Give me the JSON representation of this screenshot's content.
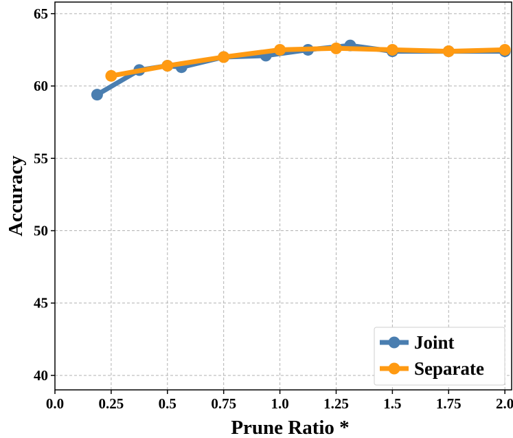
{
  "chart_data": {
    "type": "line",
    "xlabel": "Prune Ratio *",
    "ylabel": "Accuracy",
    "xlim": [
      0.0,
      2.03
    ],
    "ylim": [
      39.0,
      65.8
    ],
    "xticks": [
      0.0,
      0.25,
      0.5,
      0.75,
      1.0,
      1.25,
      1.5,
      1.75,
      2.0
    ],
    "xtick_labels": [
      "0.0",
      "0.25",
      "0.5",
      "0.75",
      "1.0",
      "1.25",
      "1.5",
      "1.75",
      "2.0"
    ],
    "yticks": [
      40,
      45,
      50,
      55,
      60,
      65
    ],
    "ytick_labels": [
      "40",
      "45",
      "50",
      "55",
      "60",
      "65"
    ],
    "grid": true,
    "legend_position": "bottom-right",
    "series": [
      {
        "name": "Joint",
        "color": "#4a7eb0",
        "x": [
          0.1875,
          0.375,
          0.5,
          0.5625,
          0.75,
          0.9375,
          1.125,
          1.3125,
          1.5,
          1.75,
          2.0
        ],
        "y": [
          59.4,
          61.1,
          61.4,
          61.3,
          62.0,
          62.1,
          62.5,
          62.8,
          62.4,
          62.4,
          62.4
        ]
      },
      {
        "name": "Separate",
        "color": "#ff9a12",
        "x": [
          0.25,
          0.5,
          0.75,
          1.0,
          1.25,
          1.5,
          1.75,
          2.0
        ],
        "y": [
          60.7,
          61.4,
          62.0,
          62.5,
          62.6,
          62.5,
          62.4,
          62.5
        ]
      }
    ]
  }
}
